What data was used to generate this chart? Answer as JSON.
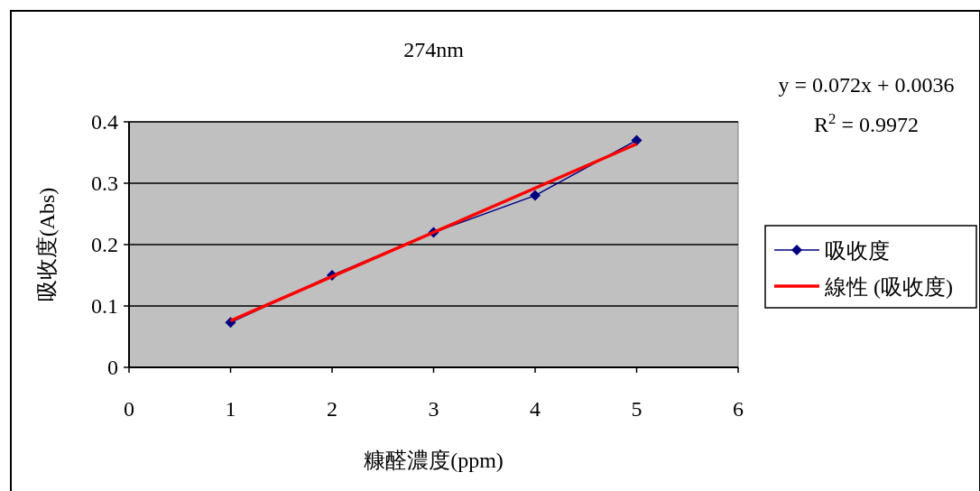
{
  "chart_data": {
    "type": "line",
    "title": "274nm",
    "xlabel": "糠醛濃度(ppm)",
    "ylabel": "吸收度(Abs)",
    "xlim": [
      0,
      6
    ],
    "xticks": [
      0,
      1,
      2,
      3,
      4,
      5,
      6
    ],
    "ylim": [
      0,
      0.4
    ],
    "yticks": [
      0,
      0.1,
      0.2,
      0.3,
      0.4
    ],
    "grid": "y",
    "legend": "right",
    "line_style": "solid",
    "series": [
      {
        "name": "吸收度",
        "color": "#000080",
        "marker": "diamond",
        "x": [
          1,
          2,
          3,
          4,
          5
        ],
        "values": [
          0.073,
          0.15,
          0.22,
          0.28,
          0.37
        ]
      },
      {
        "name": "線性 (吸收度)",
        "color": "#ff0000",
        "marker": "none",
        "x": [
          1,
          5
        ],
        "values": [
          0.076,
          0.364
        ]
      }
    ],
    "annotations": [
      "y = 0.072x + 0.0036",
      "R$^{2}$ = 0.9972"
    ]
  }
}
